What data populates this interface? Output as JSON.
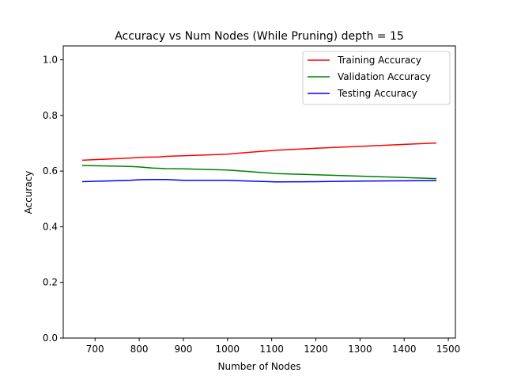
{
  "chart_data": {
    "type": "line",
    "title": "Accuracy vs Num Nodes (While Pruning) depth = 15",
    "xlabel": "Number of Nodes",
    "ylabel": "Accuracy",
    "xlim": [
      628,
      1516
    ],
    "ylim": [
      0.0,
      1.05
    ],
    "xticks": [
      700,
      800,
      900,
      1000,
      1100,
      1200,
      1300,
      1400,
      1500
    ],
    "yticks": [
      0.0,
      0.2,
      0.4,
      0.6,
      0.8,
      1.0
    ],
    "xtick_labels": [
      "700",
      "800",
      "900",
      "1000",
      "1100",
      "1200",
      "1300",
      "1400",
      "1500"
    ],
    "ytick_labels": [
      "0.0",
      "0.2",
      "0.4",
      "0.6",
      "0.8",
      "1.0"
    ],
    "grid": false,
    "legend_position": "top-right",
    "series": [
      {
        "name": "Training Accuracy",
        "color": "#ff0000",
        "x": [
          671,
          780,
          810,
          845,
          860,
          900,
          1000,
          1030,
          1110,
          1200,
          1300,
          1400,
          1473
        ],
        "y": [
          0.639,
          0.647,
          0.65,
          0.651,
          0.653,
          0.655,
          0.661,
          0.665,
          0.675,
          0.682,
          0.689,
          0.696,
          0.701
        ]
      },
      {
        "name": "Validation Accuracy",
        "color": "#008000",
        "x": [
          671,
          780,
          800,
          830,
          860,
          900,
          1000,
          1050,
          1110,
          1200,
          1300,
          1400,
          1473
        ],
        "y": [
          0.62,
          0.617,
          0.615,
          0.611,
          0.609,
          0.608,
          0.604,
          0.598,
          0.591,
          0.587,
          0.582,
          0.577,
          0.573
        ]
      },
      {
        "name": "Testing Accuracy",
        "color": "#0000ff",
        "x": [
          671,
          780,
          800,
          830,
          860,
          900,
          1000,
          1050,
          1110,
          1200,
          1300,
          1400,
          1473
        ],
        "y": [
          0.562,
          0.567,
          0.569,
          0.57,
          0.57,
          0.567,
          0.567,
          0.564,
          0.561,
          0.562,
          0.564,
          0.565,
          0.566
        ]
      }
    ]
  }
}
